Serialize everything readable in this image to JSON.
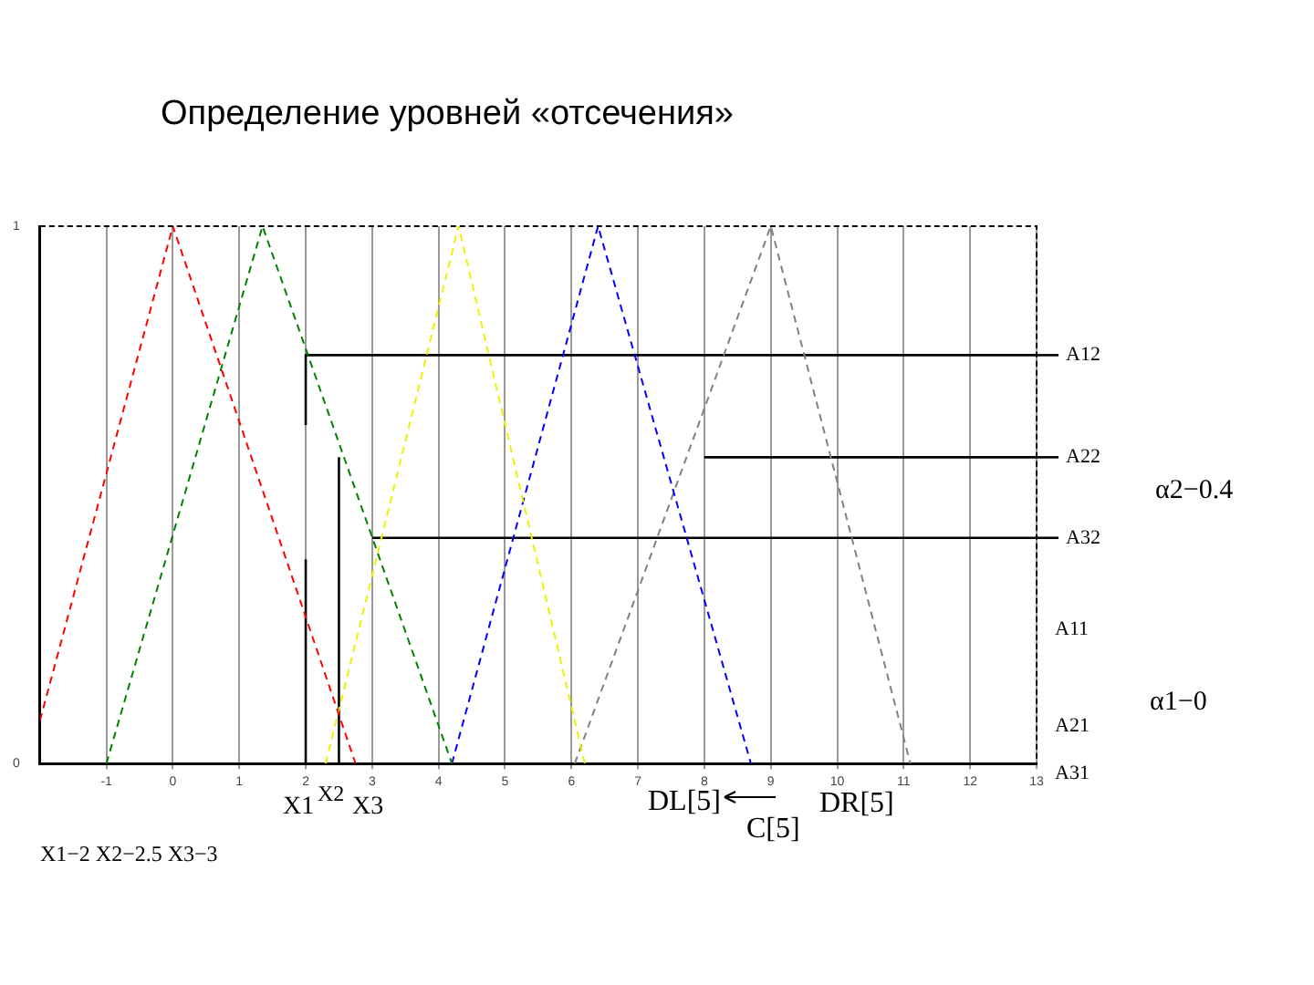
{
  "chart_data": {
    "type": "line",
    "title": "Определение уровней «отсечения»",
    "xlim": [
      -2,
      13
    ],
    "xticks": [
      -1,
      0,
      1,
      2,
      3,
      4,
      5,
      6,
      7,
      8,
      9,
      10,
      11,
      12,
      13
    ],
    "ylim": [
      0,
      1
    ],
    "yticks": [
      0,
      1
    ],
    "grid": "x",
    "legend": "right",
    "line_style": "dashed",
    "marker": "none",
    "series": [
      {
        "color": "#ff0000",
        "x": [
          -2,
          0,
          2.75
        ],
        "values": [
          0.08,
          1,
          0
        ]
      },
      {
        "color": "#008000",
        "x": [
          -1,
          1.35,
          4.2
        ],
        "values": [
          0,
          1,
          0
        ]
      },
      {
        "color": "#f0f000",
        "x": [
          2.3,
          4.3,
          6.2
        ],
        "values": [
          0,
          1,
          0
        ]
      },
      {
        "color": "#0000ff",
        "x": [
          4.2,
          6.4,
          8.7
        ],
        "values": [
          0,
          1,
          0
        ]
      },
      {
        "color": "#808080",
        "x": [
          6.05,
          9,
          11.1
        ],
        "values": [
          0,
          1,
          0
        ]
      },
      {
        "name": "A12",
        "color": "#000000",
        "line_style": "solid",
        "x": [
          2,
          2,
          13
        ],
        "values": [
          0.63,
          0.76,
          0.76
        ]
      },
      {
        "name": "A22",
        "color": "#000000",
        "line_style": "solid",
        "x": [
          8,
          13
        ],
        "values": [
          0.57,
          0.57
        ]
      },
      {
        "name": "A32",
        "color": "#000000",
        "line_style": "solid",
        "x": [
          3,
          13
        ],
        "values": [
          0.42,
          0.42
        ]
      },
      {
        "color": "#000000",
        "line_style": "solid",
        "x": [
          2,
          2
        ],
        "values": [
          0,
          0.38
        ]
      },
      {
        "color": "#000000",
        "line_style": "solid",
        "x": [
          2.5,
          2.5
        ],
        "values": [
          0,
          0.57
        ]
      }
    ],
    "annotations": [
      "A11",
      "A21",
      "A31",
      "α2−0.4",
      "α1−0",
      "X1",
      "X2",
      "X3",
      "DL[5]",
      "C[5]",
      "DR[5]",
      "X1−2  X2−2.5  X3−3"
    ]
  }
}
